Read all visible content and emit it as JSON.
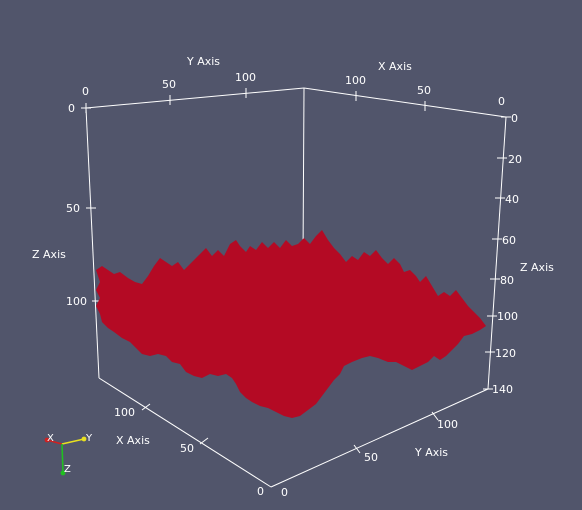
{
  "viewport": {
    "background_color": "#51556b",
    "axes_color": "#ffffff",
    "surface_color": "#b40a24"
  },
  "axes_titles": {
    "y_top": "Y Axis",
    "x_top": "X Axis",
    "z_left": "Z Axis",
    "z_right": "Z Axis",
    "x_bottom": "X Axis",
    "y_bottom": "Y Axis"
  },
  "ticks": {
    "y_top": [
      "0",
      "50",
      "100"
    ],
    "x_top": [
      "100",
      "50",
      "0"
    ],
    "z_left": [
      "0",
      "50",
      "100"
    ],
    "z_right": [
      "0",
      "20",
      "40",
      "60",
      "80",
      "100",
      "120",
      "140"
    ],
    "x_bottom": [
      "100",
      "50",
      "0"
    ],
    "y_bottom": [
      "0",
      "50",
      "100"
    ]
  },
  "orientation_widget": {
    "x_label": "X",
    "y_label": "Y",
    "z_label": "Z",
    "x_color": "#d02020",
    "y_color": "#e8e020",
    "z_color": "#20c020"
  }
}
